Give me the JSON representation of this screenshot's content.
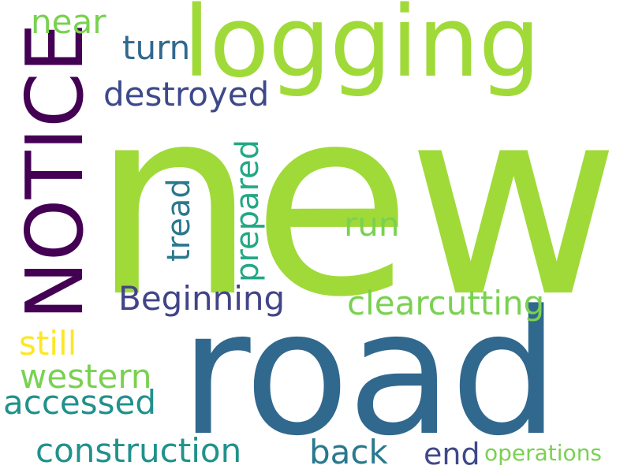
{
  "words": {
    "new": {
      "text": "new",
      "color": "#a0da39"
    },
    "road": {
      "text": "road",
      "color": "#31688e"
    },
    "logging": {
      "text": "logging",
      "color": "#a0da39"
    },
    "notice": {
      "text": "NOTICE",
      "color": "#440154"
    },
    "near": {
      "text": "near",
      "color": "#7ad151"
    },
    "turn": {
      "text": "turn",
      "color": "#31688e"
    },
    "destroyed": {
      "text": "destroyed",
      "color": "#3e4989"
    },
    "tread": {
      "text": "tread",
      "color": "#2a788e"
    },
    "prepared": {
      "text": "prepared",
      "color": "#22a884"
    },
    "run": {
      "text": "run",
      "color": "#7ad151"
    },
    "beginning": {
      "text": "Beginning",
      "color": "#414487"
    },
    "clearcutting": {
      "text": "clearcutting",
      "color": "#7ad151"
    },
    "still": {
      "text": "still",
      "color": "#fde725"
    },
    "western": {
      "text": "western",
      "color": "#7ad151"
    },
    "accessed": {
      "text": "accessed",
      "color": "#21918c"
    },
    "construction": {
      "text": "construction",
      "color": "#21918c"
    },
    "back": {
      "text": "back",
      "color": "#2a788e"
    },
    "end": {
      "text": "end",
      "color": "#3e4989"
    },
    "operations": {
      "text": "operations",
      "color": "#7ad151"
    }
  }
}
